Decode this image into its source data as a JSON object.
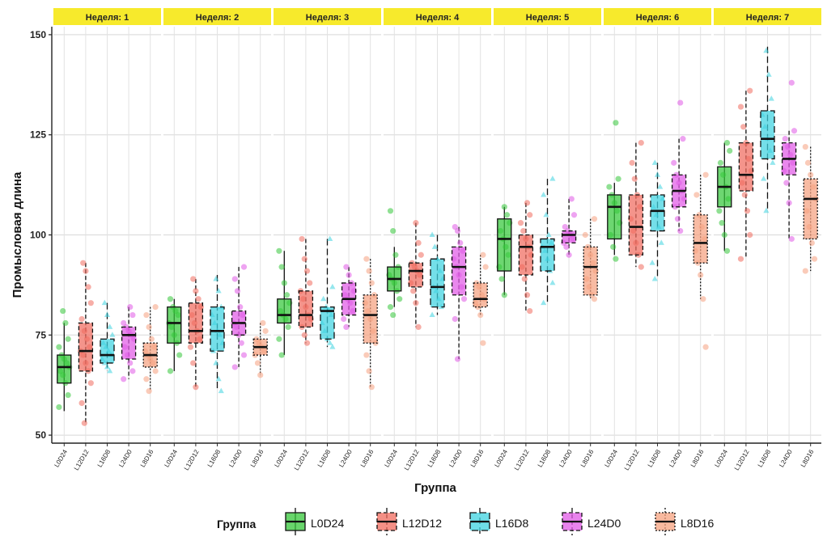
{
  "chart_data": {
    "type": "boxplot",
    "ylabel": "Промысловая длина",
    "xlabel": "Группа",
    "ylim": [
      48,
      152
    ],
    "yticks": [
      50,
      75,
      100,
      125,
      150
    ],
    "grid": true,
    "legend": {
      "title": "Группа",
      "placement": "bottom",
      "items": [
        "L0D24",
        "L12D12",
        "L16D8",
        "L24D0",
        "L8D16"
      ]
    },
    "group_colors": {
      "L0D24": "#35c73a",
      "L12D12": "#f06b5e",
      "L16D8": "#3ed3e0",
      "L24D0": "#e05ae6",
      "L8D16": "#f5a17f"
    },
    "group_styles": {
      "L0D24": "solid",
      "L12D12": "dashed",
      "L16D8": "longdash",
      "L24D0": "dashed",
      "L8D16": "dotted"
    },
    "strip_color": "#f7ea2c",
    "panels": [
      {
        "label": "Неделя: 1",
        "groups": [
          {
            "name": "L0D24",
            "min": 56,
            "q1": 63,
            "median": 67,
            "q3": 70,
            "max": 78,
            "points": [
              57,
              60,
              63,
              65,
              66,
              67,
              68,
              69,
              70,
              72,
              74,
              78,
              81
            ]
          },
          {
            "name": "L12D12",
            "min": 53,
            "q1": 66,
            "median": 71,
            "q3": 78,
            "max": 93,
            "points": [
              53,
              58,
              63,
              66,
              68,
              70,
              71,
              72,
              74,
              76,
              79,
              83,
              87,
              91,
              93
            ]
          },
          {
            "name": "L16D8",
            "min": 66,
            "q1": 68,
            "median": 70,
            "q3": 74,
            "max": 83,
            "points": [
              66,
              67,
              68,
              69,
              70,
              71,
              72,
              73,
              75,
              77,
              80,
              83
            ]
          },
          {
            "name": "L24D0",
            "min": 64,
            "q1": 69,
            "median": 75,
            "q3": 77,
            "max": 82,
            "points": [
              64,
              66,
              68,
              70,
              72,
              74,
              75,
              76,
              77,
              78,
              80,
              82
            ]
          },
          {
            "name": "L8D16",
            "min": 61,
            "q1": 67,
            "median": 70,
            "q3": 73,
            "max": 82,
            "points": [
              61,
              64,
              66,
              68,
              69,
              70,
              71,
              72,
              74,
              77,
              80,
              82
            ]
          }
        ]
      },
      {
        "label": "Неделя: 2",
        "groups": [
          {
            "name": "L0D24",
            "min": 66,
            "q1": 73,
            "median": 78,
            "q3": 82,
            "max": 84,
            "points": [
              66,
              70,
              73,
              75,
              77,
              78,
              80,
              81,
              82,
              84
            ]
          },
          {
            "name": "L12D12",
            "min": 62,
            "q1": 73,
            "median": 76,
            "q3": 83,
            "max": 89,
            "points": [
              62,
              68,
              72,
              74,
              76,
              78,
              80,
              82,
              84,
              86,
              89
            ]
          },
          {
            "name": "L16D8",
            "min": 61,
            "q1": 71,
            "median": 76,
            "q3": 82,
            "max": 90,
            "points": [
              61,
              64,
              68,
              71,
              73,
              75,
              76,
              78,
              80,
              82,
              86,
              89
            ]
          },
          {
            "name": "L24D0",
            "min": 67,
            "q1": 75,
            "median": 78,
            "q3": 81,
            "max": 92,
            "points": [
              67,
              70,
              73,
              75,
              77,
              78,
              80,
              82,
              86,
              89,
              92
            ]
          },
          {
            "name": "L8D16",
            "min": 65,
            "q1": 70,
            "median": 72,
            "q3": 74,
            "max": 78,
            "points": [
              65,
              68,
              70,
              71,
              72,
              73,
              74,
              76,
              78
            ]
          }
        ]
      },
      {
        "label": "Неделя: 3",
        "groups": [
          {
            "name": "L0D24",
            "min": 70,
            "q1": 78,
            "median": 80,
            "q3": 84,
            "max": 96,
            "points": [
              70,
              74,
              77,
              79,
              80,
              81,
              83,
              85,
              88,
              92,
              96
            ]
          },
          {
            "name": "L12D12",
            "min": 73,
            "q1": 77,
            "median": 80,
            "q3": 86,
            "max": 99,
            "points": [
              73,
              75,
              77,
              79,
              80,
              82,
              84,
              86,
              88,
              91,
              94,
              99
            ]
          },
          {
            "name": "L16D8",
            "min": 72,
            "q1": 74,
            "median": 81,
            "q3": 82,
            "max": 99,
            "points": [
              72,
              73,
              74,
              76,
              78,
              80,
              81,
              82,
              84,
              87,
              99
            ]
          },
          {
            "name": "L24D0",
            "min": 77,
            "q1": 80,
            "median": 84,
            "q3": 88,
            "max": 92,
            "points": [
              77,
              79,
              81,
              83,
              84,
              85,
              86,
              88,
              90,
              92
            ]
          },
          {
            "name": "L8D16",
            "min": 62,
            "q1": 73,
            "median": 80,
            "q3": 85,
            "max": 94,
            "points": [
              62,
              66,
              70,
              73,
              76,
              79,
              81,
              83,
              85,
              88,
              91,
              94
            ]
          }
        ]
      },
      {
        "label": "Неделя: 4",
        "groups": [
          {
            "name": "L0D24",
            "min": 82,
            "q1": 86,
            "median": 89,
            "q3": 92,
            "max": 97,
            "points": [
              80,
              82,
              84,
              86,
              88,
              89,
              90,
              92,
              95,
              101,
              106
            ]
          },
          {
            "name": "L12D12",
            "min": 77,
            "q1": 87,
            "median": 91,
            "q3": 93,
            "max": 103,
            "points": [
              77,
              83,
              86,
              88,
              90,
              91,
              92,
              93,
              95,
              98,
              103
            ]
          },
          {
            "name": "L16D8",
            "min": 80,
            "q1": 82,
            "median": 87,
            "q3": 94,
            "max": 100,
            "points": [
              80,
              82,
              84,
              86,
              87,
              89,
              91,
              94,
              97,
              100
            ]
          },
          {
            "name": "L24D0",
            "min": 69,
            "q1": 85,
            "median": 92,
            "q3": 97,
            "max": 102,
            "points": [
              69,
              79,
              84,
              87,
              90,
              92,
              94,
              96,
              98,
              101,
              102
            ]
          },
          {
            "name": "L8D16",
            "min": 80,
            "q1": 82,
            "median": 84,
            "q3": 88,
            "max": 95,
            "points": [
              73,
              80,
              82,
              83,
              84,
              85,
              87,
              88,
              92,
              95
            ]
          }
        ]
      },
      {
        "label": "Неделя: 5",
        "groups": [
          {
            "name": "L0D24",
            "min": 85,
            "q1": 91,
            "median": 99,
            "q3": 104,
            "max": 107,
            "points": [
              85,
              89,
              92,
              95,
              97,
              99,
              101,
              103,
              105,
              107
            ]
          },
          {
            "name": "L12D12",
            "min": 81,
            "q1": 90,
            "median": 97,
            "q3": 100,
            "max": 108,
            "points": [
              81,
              85,
              89,
              92,
              95,
              97,
              99,
              101,
              103,
              105,
              108
            ]
          },
          {
            "name": "L16D8",
            "min": 83,
            "q1": 91,
            "median": 97,
            "q3": 99,
            "max": 114,
            "points": [
              83,
              88,
              91,
              94,
              96,
              97,
              98,
              100,
              105,
              110,
              114
            ]
          },
          {
            "name": "L24D0",
            "min": 95,
            "q1": 98,
            "median": 100,
            "q3": 101,
            "max": 109,
            "points": [
              95,
              97,
              98,
              99,
              100,
              101,
              102,
              105,
              109
            ]
          },
          {
            "name": "L8D16",
            "min": 84,
            "q1": 85,
            "median": 92,
            "q3": 97,
            "max": 104,
            "points": [
              84,
              85,
              87,
              89,
              91,
              93,
              95,
              97,
              100,
              104
            ]
          }
        ]
      },
      {
        "label": "Неделя: 6",
        "groups": [
          {
            "name": "L0D24",
            "min": 95,
            "q1": 99,
            "median": 107,
            "q3": 110,
            "max": 113,
            "points": [
              94,
              97,
              100,
              103,
              106,
              108,
              110,
              112,
              114,
              128
            ]
          },
          {
            "name": "L12D12",
            "min": 92,
            "q1": 95,
            "median": 102,
            "q3": 110,
            "max": 123,
            "points": [
              92,
              95,
              98,
              101,
              104,
              107,
              110,
              114,
              118,
              123
            ]
          },
          {
            "name": "L16D8",
            "min": 89,
            "q1": 101,
            "median": 106,
            "q3": 110,
            "max": 118,
            "points": [
              89,
              93,
              98,
              102,
              105,
              107,
              109,
              112,
              115,
              118
            ]
          },
          {
            "name": "L24D0",
            "min": 101,
            "q1": 107,
            "median": 111,
            "q3": 115,
            "max": 124,
            "points": [
              101,
              104,
              107,
              109,
              111,
              113,
              115,
              118,
              124,
              133
            ]
          },
          {
            "name": "L8D16",
            "min": 84,
            "q1": 93,
            "median": 98,
            "q3": 105,
            "max": 115,
            "points": [
              72,
              84,
              90,
              93,
              96,
              99,
              102,
              105,
              110,
              115
            ]
          }
        ]
      },
      {
        "label": "Неделя: 7",
        "groups": [
          {
            "name": "L0D24",
            "min": 96,
            "q1": 107,
            "median": 112,
            "q3": 117,
            "max": 123,
            "points": [
              96,
              100,
              103,
              106,
              109,
              112,
              115,
              118,
              121,
              123
            ]
          },
          {
            "name": "L12D12",
            "min": 94,
            "q1": 111,
            "median": 115,
            "q3": 123,
            "max": 136,
            "points": [
              94,
              100,
              106,
              110,
              113,
              116,
              119,
              123,
              127,
              132,
              136
            ]
          },
          {
            "name": "L16D8",
            "min": 106,
            "q1": 119,
            "median": 124,
            "q3": 131,
            "max": 147,
            "points": [
              106,
              114,
              118,
              121,
              124,
              127,
              130,
              134,
              140,
              146
            ]
          },
          {
            "name": "L24D0",
            "min": 99,
            "q1": 115,
            "median": 119,
            "q3": 123,
            "max": 126,
            "points": [
              99,
              108,
              113,
              116,
              118,
              120,
              122,
              124,
              126,
              138
            ]
          },
          {
            "name": "L8D16",
            "min": 91,
            "q1": 99,
            "median": 109,
            "q3": 114,
            "max": 122,
            "points": [
              91,
              94,
              98,
              102,
              106,
              109,
              112,
              115,
              118,
              122
            ]
          }
        ]
      }
    ]
  }
}
